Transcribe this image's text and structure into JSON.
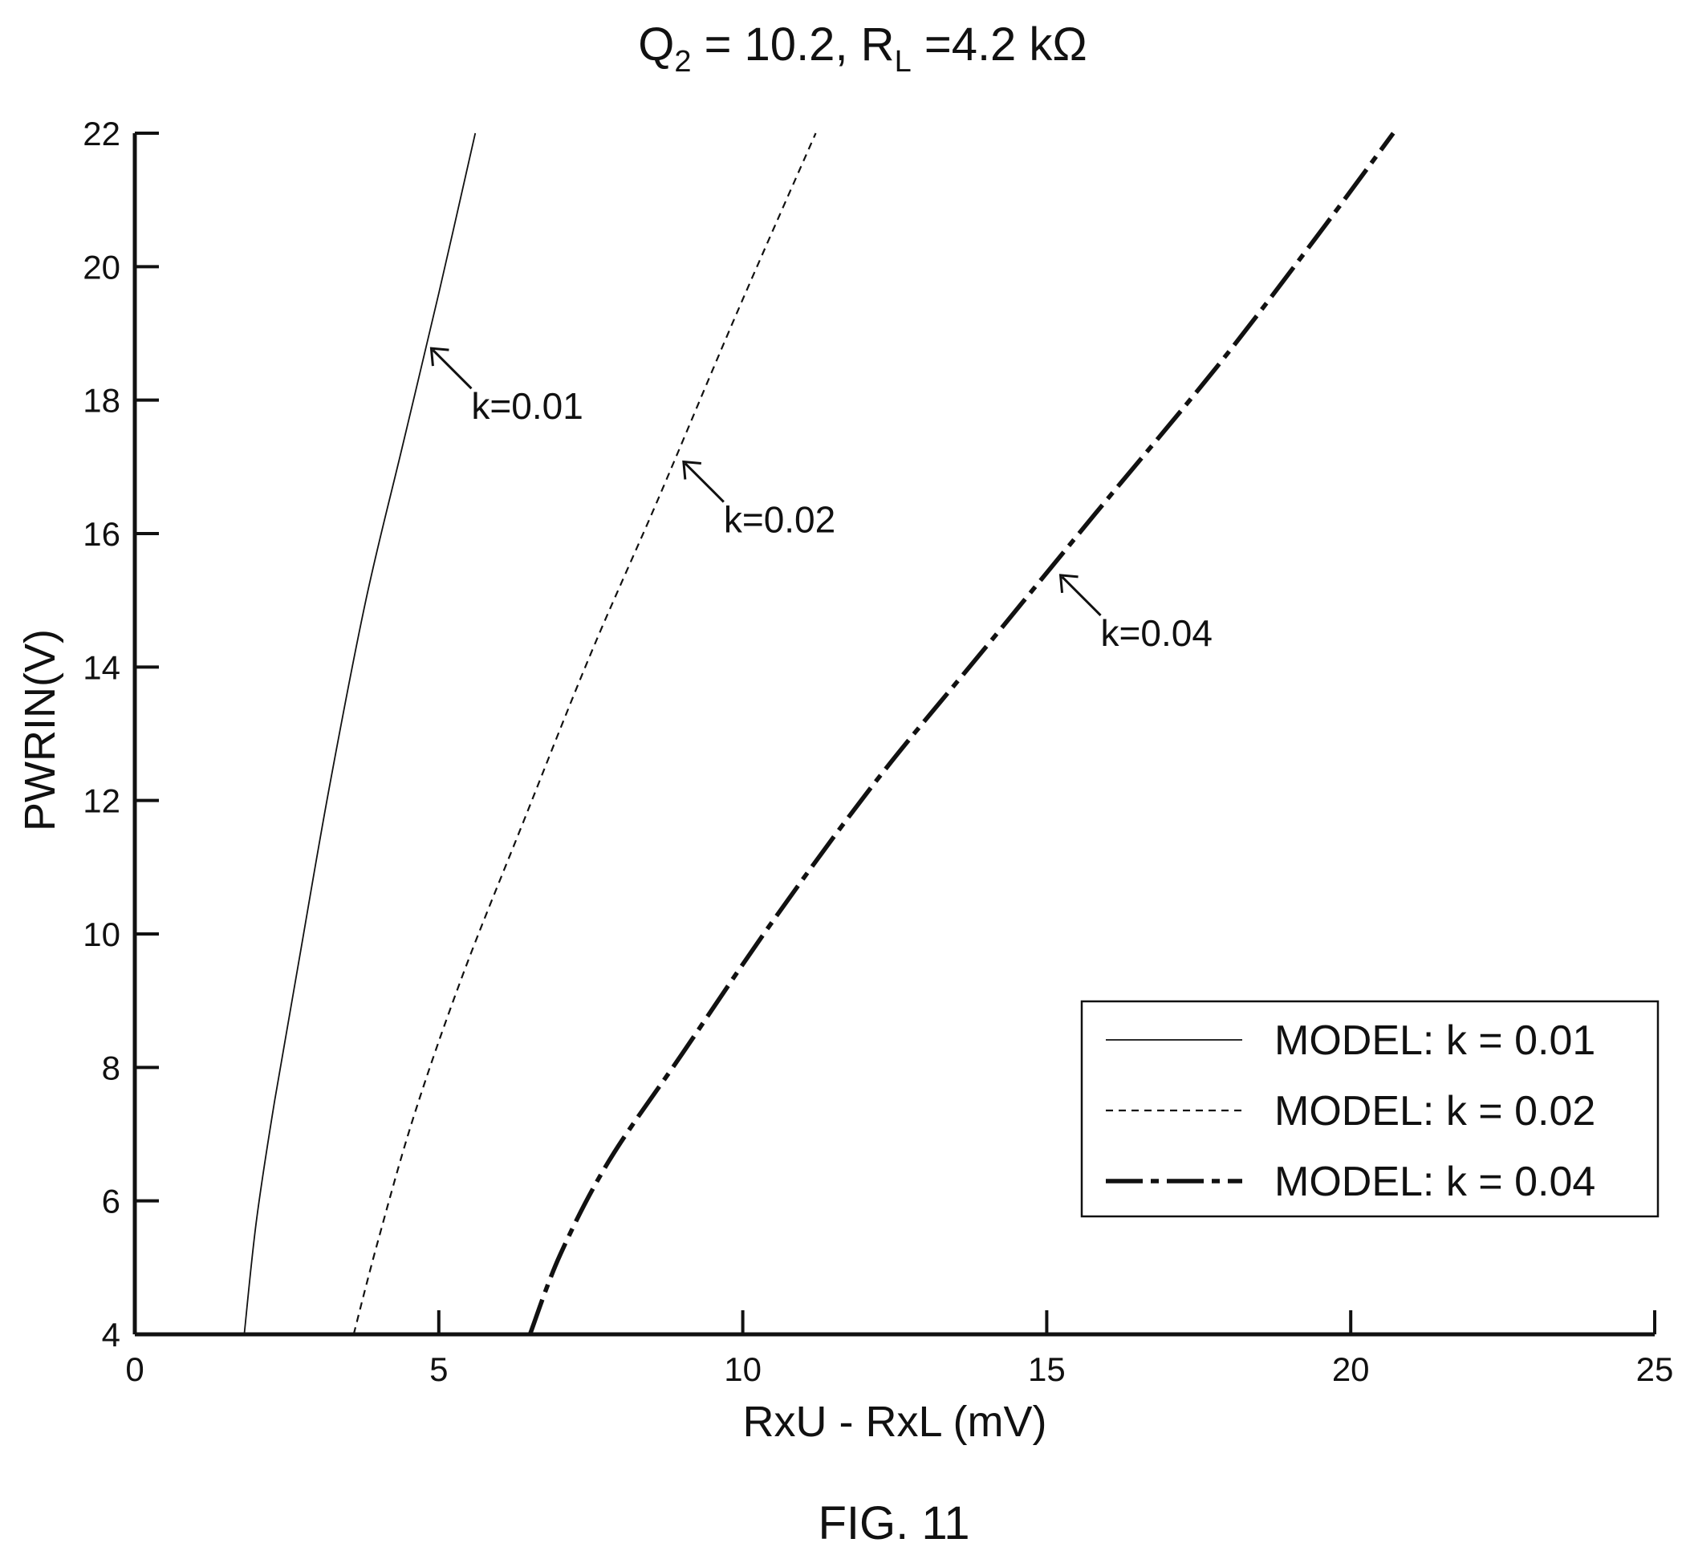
{
  "title": {
    "q_symbol": "Q",
    "q_sub": "2",
    "q_value": " = 10.2, R",
    "r_sub": "L",
    "r_value": " =4.2 kΩ"
  },
  "caption": "FIG. 11",
  "chart_data": {
    "type": "line",
    "xlabel": "RxU - RxL (mV)",
    "ylabel": "PWRIN(V)",
    "xlim": [
      0,
      25
    ],
    "ylim": [
      4,
      22
    ],
    "xticks": [
      0,
      5,
      10,
      15,
      20,
      25
    ],
    "yticks": [
      4,
      6,
      8,
      10,
      12,
      14,
      16,
      18,
      20,
      22
    ],
    "grid": false,
    "legend_position": "bottom-right",
    "series": [
      {
        "name": "MODEL: k = 0.01",
        "style": "solid-thin",
        "color": "#111111",
        "x": [
          1.8,
          2.0,
          2.3,
          2.7,
          3.2,
          3.8,
          4.4,
          5.0,
          5.6
        ],
        "y": [
          4,
          5.7,
          7.5,
          9.6,
          12.2,
          15.0,
          17.3,
          19.6,
          22
        ]
      },
      {
        "name": "MODEL: k = 0.02",
        "style": "dashed-short",
        "color": "#111111",
        "x": [
          3.6,
          4.0,
          4.6,
          5.4,
          6.4,
          7.5,
          8.6,
          9.9,
          11.2
        ],
        "y": [
          4,
          5.4,
          7.3,
          9.4,
          11.7,
          14.2,
          16.5,
          19.3,
          22
        ]
      },
      {
        "name": "MODEL: k = 0.04",
        "style": "dash-dot-thick",
        "color": "#111111",
        "x": [
          6.5,
          7.0,
          7.8,
          9.0,
          10.5,
          12.2,
          14.0,
          15.8,
          17.8,
          19.4,
          20.7
        ],
        "y": [
          4,
          5.2,
          6.6,
          8.2,
          10.2,
          12.3,
          14.3,
          16.3,
          18.5,
          20.4,
          22
        ]
      }
    ],
    "annotations": [
      {
        "text": "k=0.01",
        "x": 4.85,
        "y": 18.8
      },
      {
        "text": "k=0.02",
        "x": 9.0,
        "y": 17.1
      },
      {
        "text": "k=0.04",
        "x": 15.2,
        "y": 15.4
      }
    ]
  }
}
